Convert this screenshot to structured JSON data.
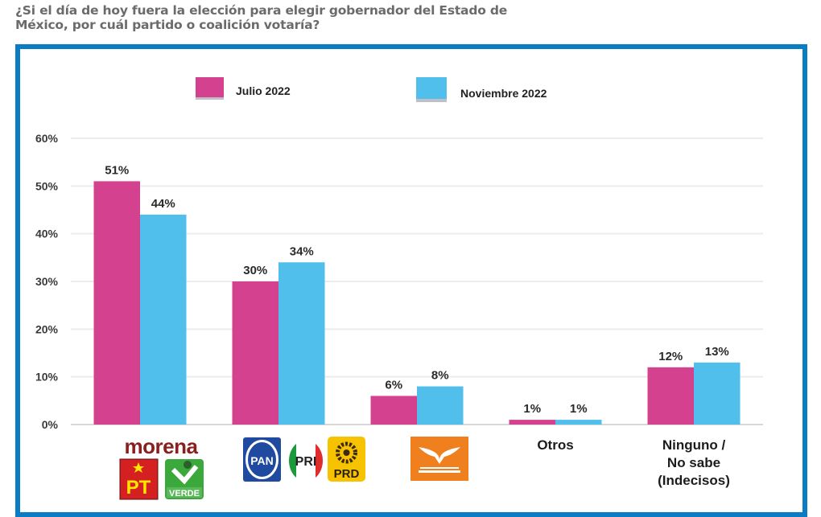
{
  "question": {
    "line1": "¿Si el día de hoy fuera la elección para elegir gobernador del Estado de",
    "line2": "México, por cuál partido o coalición votaría?"
  },
  "colors": {
    "frame": "#0a7cc4",
    "julio": "#d4428f",
    "noviembre": "#50bfec"
  },
  "logos": {
    "morena": "morena",
    "pt": "PT",
    "verde": "VERDE",
    "pan": "PAN",
    "pri": "PRI",
    "prd": "PRD",
    "mc": "Movimiento Ciudadano"
  },
  "chart_data": {
    "type": "bar",
    "title": "",
    "xlabel": "",
    "ylabel": "",
    "ylim": [
      0,
      60
    ],
    "yticks": [
      "0%",
      "10%",
      "20%",
      "30%",
      "40%",
      "50%",
      "60%"
    ],
    "ytick_values": [
      0,
      10,
      20,
      30,
      40,
      50,
      60
    ],
    "grid": true,
    "legend_position": "top",
    "categories": [
      "Morena-PT-PVEM",
      "PAN-PRI-PRD",
      "MC",
      "Otros",
      "Ninguno / No sabe (Indecisos)"
    ],
    "category_text": [
      "",
      "",
      "",
      "Otros",
      "Ninguno /|No sabe|(Indecisos)"
    ],
    "series": [
      {
        "name": "Julio 2022",
        "values": [
          51,
          30,
          6,
          1,
          12
        ],
        "labels": [
          "51%",
          "30%",
          "6%",
          "1%",
          "12%"
        ]
      },
      {
        "name": "Noviembre 2022",
        "values": [
          44,
          34,
          8,
          1,
          13
        ],
        "labels": [
          "44%",
          "34%",
          "8%",
          "1%",
          "13%"
        ]
      }
    ]
  }
}
